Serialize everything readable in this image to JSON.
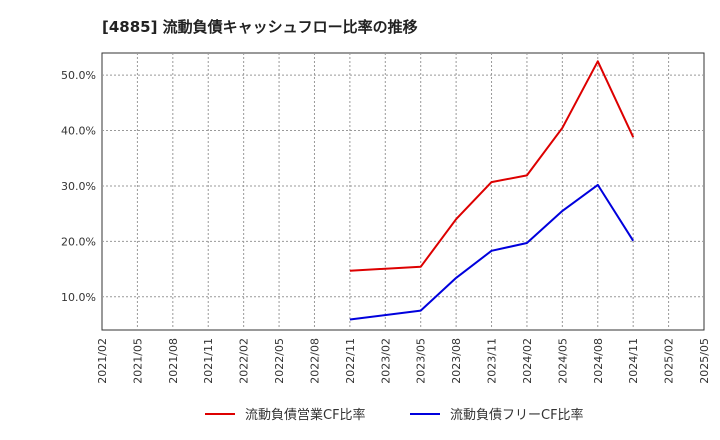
{
  "chart_data": {
    "type": "line",
    "title": "[4885]  流動負債キャッシュフロー比率の推移",
    "xlabel": "",
    "ylabel": "",
    "x_ticks": [
      "2021/02",
      "2021/05",
      "2021/08",
      "2021/11",
      "2022/02",
      "2022/05",
      "2022/08",
      "2022/11",
      "2023/02",
      "2023/05",
      "2023/08",
      "2023/11",
      "2024/02",
      "2024/05",
      "2024/08",
      "2024/11",
      "2025/02",
      "2025/05"
    ],
    "y_ticks": [
      "10.0%",
      "20.0%",
      "30.0%",
      "40.0%",
      "50.0%"
    ],
    "y_tick_values": [
      10,
      20,
      30,
      40,
      50
    ],
    "ylim": [
      4,
      54
    ],
    "grid": true,
    "legend_position": "bottom",
    "series": [
      {
        "name": "流動負債営業CF比率",
        "color": "#dd0000",
        "points": [
          {
            "x": "2022/11",
            "y": 14.7
          },
          {
            "x": "2023/05",
            "y": 15.4
          },
          {
            "x": "2023/08",
            "y": 24.0
          },
          {
            "x": "2023/11",
            "y": 30.7
          },
          {
            "x": "2024/02",
            "y": 31.9
          },
          {
            "x": "2024/05",
            "y": 40.5
          },
          {
            "x": "2024/08",
            "y": 52.5
          },
          {
            "x": "2024/11",
            "y": 38.8
          }
        ]
      },
      {
        "name": "流動負債フリーCF比率",
        "color": "#0000dd",
        "points": [
          {
            "x": "2022/11",
            "y": 5.9
          },
          {
            "x": "2023/05",
            "y": 7.5
          },
          {
            "x": "2023/08",
            "y": 13.4
          },
          {
            "x": "2023/11",
            "y": 18.3
          },
          {
            "x": "2024/02",
            "y": 19.7
          },
          {
            "x": "2024/05",
            "y": 25.5
          },
          {
            "x": "2024/08",
            "y": 30.2
          },
          {
            "x": "2024/11",
            "y": 20.1
          }
        ]
      }
    ]
  }
}
